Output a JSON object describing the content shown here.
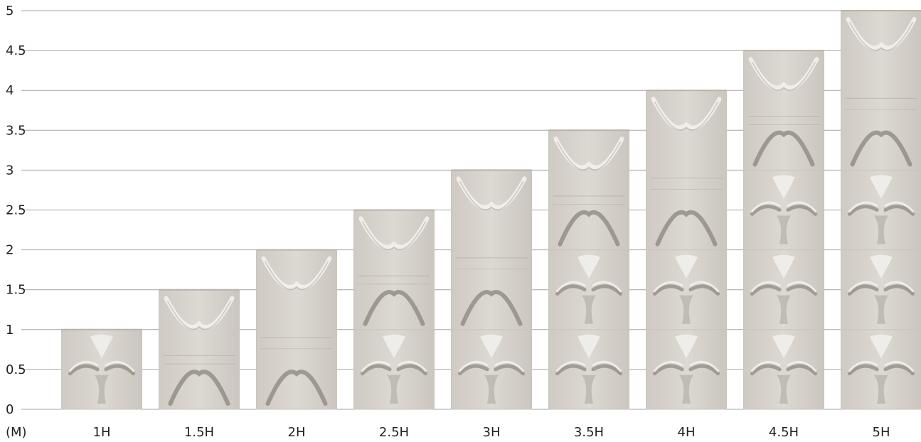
{
  "chart_data": {
    "type": "bar",
    "categories": [
      "1H",
      "1.5H",
      "2H",
      "2.5H",
      "3H",
      "3.5H",
      "4H",
      "4.5H",
      "5H"
    ],
    "values": [
      1,
      1.5,
      2,
      2.5,
      3,
      3.5,
      4,
      4.5,
      5
    ],
    "y_ticks": [
      "0",
      "0.5",
      "1",
      "1.5",
      "2",
      "2.5",
      "3",
      "3.5",
      "4",
      "4.5",
      "5"
    ],
    "ylim": [
      0,
      5
    ],
    "unit_label": "(M)",
    "grid": true,
    "title": "",
    "xlabel": "",
    "ylabel": ""
  },
  "colors": {
    "gridline": "#a3a3a3",
    "panel_fill": "#d9d5cf",
    "panel_edge": "#c9c4bc",
    "relief_light": "#f1efeb",
    "relief_shadow": "#8f8a82"
  }
}
